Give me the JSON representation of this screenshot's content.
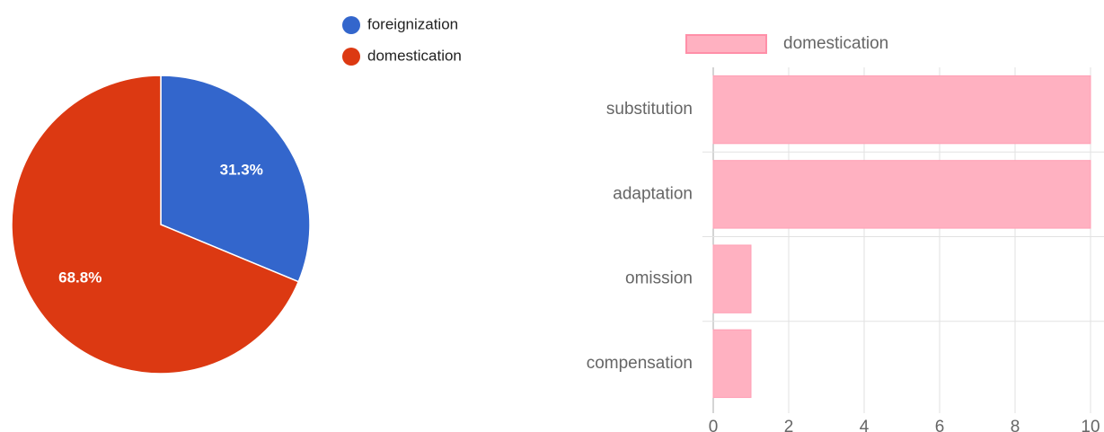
{
  "chart_data": [
    {
      "type": "pie",
      "categories": [
        "foreignization",
        "domestication"
      ],
      "values": [
        31.3,
        68.8
      ],
      "value_labels": [
        "31.3%",
        "68.8%"
      ],
      "colors": [
        "#3366cc",
        "#dc3912"
      ]
    },
    {
      "type": "bar",
      "orientation": "horizontal",
      "categories": [
        "substitution",
        "adaptation",
        "omission",
        "compensation"
      ],
      "series": [
        {
          "name": "domestication",
          "color": "#ffb1c1",
          "values": [
            10,
            10,
            1,
            1
          ]
        }
      ],
      "xlim": [
        0,
        10
      ],
      "xticks": [
        0,
        2,
        4,
        6,
        8,
        10
      ],
      "grid": true
    }
  ]
}
